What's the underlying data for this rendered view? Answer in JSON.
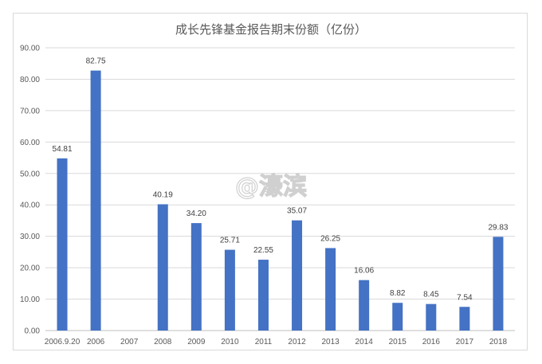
{
  "chart_data": {
    "type": "bar",
    "title": "成长先锋基金报告期末份额（亿份）",
    "categories": [
      "2006.9.20",
      "2006",
      "2007",
      "2008",
      "2009",
      "2010",
      "2011",
      "2012",
      "2013",
      "2014",
      "2015",
      "2016",
      "2017",
      "2018"
    ],
    "values": [
      54.81,
      82.75,
      null,
      40.19,
      34.2,
      25.71,
      22.55,
      35.07,
      26.25,
      16.06,
      8.82,
      8.45,
      7.54,
      29.83
    ],
    "value_labels": [
      "54.81",
      "82.75",
      "",
      "40.19",
      "34.20",
      "25.71",
      "22.55",
      "35.07",
      "26.25",
      "16.06",
      "8.82",
      "8.45",
      "7.54",
      "29.83"
    ],
    "y_ticks": [
      "0.00",
      "10.00",
      "20.00",
      "30.00",
      "40.00",
      "50.00",
      "60.00",
      "70.00",
      "80.00",
      "90.00"
    ],
    "ylim": [
      0,
      90
    ],
    "grid": true,
    "legend": "none",
    "bar_color": "#4472c4"
  },
  "watermark": "@濠滨"
}
